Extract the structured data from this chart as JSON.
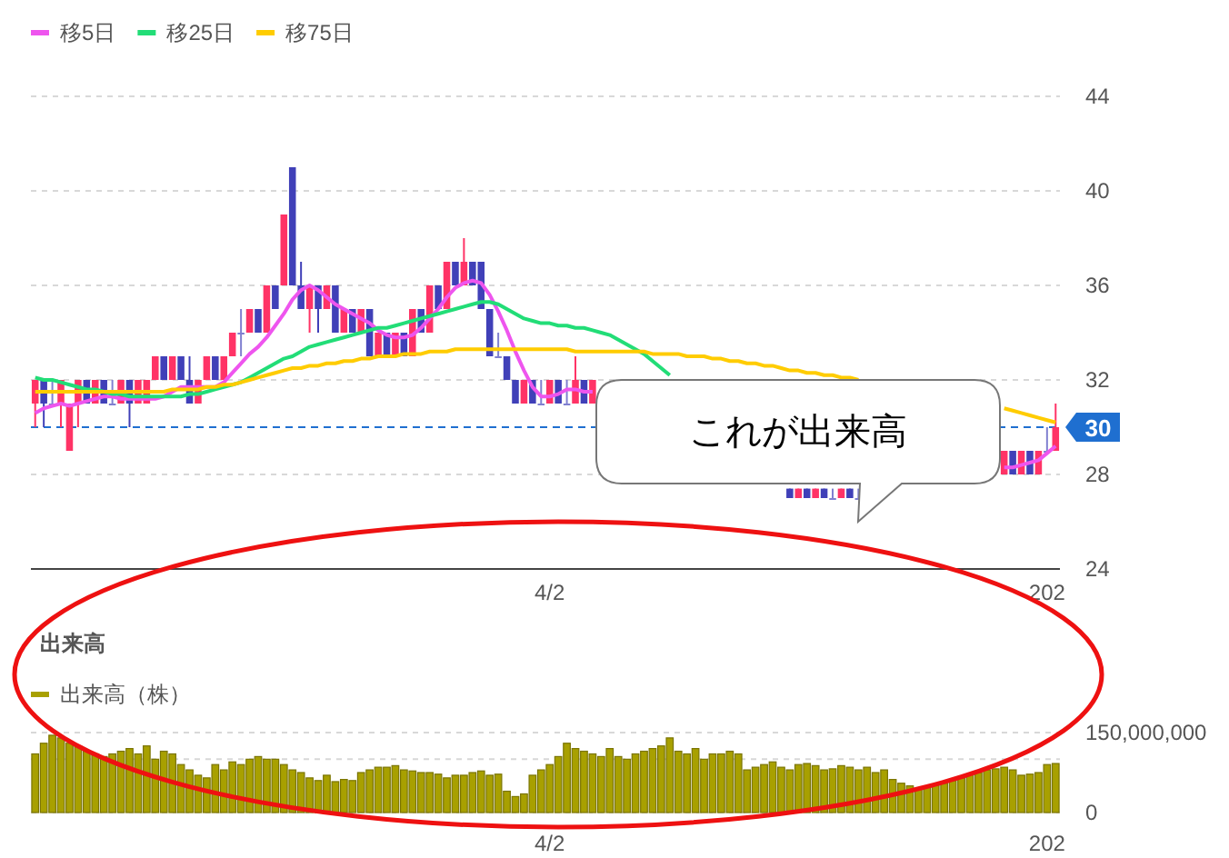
{
  "chart_data": [
    {
      "type": "candlestick",
      "categories": [
        null,
        null,
        null,
        null,
        null,
        null,
        null,
        null,
        null,
        null,
        null,
        null,
        null,
        null,
        null,
        null,
        null,
        null,
        null,
        null,
        null,
        null,
        null,
        null,
        null,
        null,
        null,
        null,
        null,
        null,
        null,
        null,
        null,
        null,
        null,
        null,
        null,
        null,
        null,
        null,
        null,
        null,
        null,
        null,
        null,
        null,
        null,
        null,
        null,
        null,
        null,
        null,
        null,
        null,
        null,
        null,
        null,
        null,
        null,
        null,
        "4/2",
        null,
        null,
        null,
        null,
        null,
        null,
        null,
        null,
        null,
        null,
        null,
        null,
        null,
        null,
        null,
        null,
        null,
        null,
        null,
        null,
        null,
        null,
        null,
        null,
        null,
        null,
        null,
        null,
        null,
        null,
        null,
        null,
        null,
        null,
        null,
        null,
        null,
        null,
        null,
        null,
        null,
        null,
        null,
        null,
        null,
        null,
        null,
        null,
        null,
        null,
        null,
        null,
        null,
        null,
        null,
        null,
        null,
        "202",
        null
      ],
      "ohlc": [
        [
          31,
          32,
          30,
          32
        ],
        [
          32,
          32,
          30,
          31
        ],
        [
          31,
          32,
          31,
          31
        ],
        [
          31,
          32,
          30,
          32
        ],
        [
          29,
          31,
          29,
          31
        ],
        [
          31,
          32,
          30,
          32
        ],
        [
          32,
          32,
          31,
          31
        ],
        [
          31,
          32,
          31,
          32
        ],
        [
          32,
          32,
          31,
          31
        ],
        [
          31,
          32,
          31,
          31
        ],
        [
          31,
          32,
          31,
          32
        ],
        [
          32,
          32,
          30,
          31
        ],
        [
          31,
          32,
          31,
          32
        ],
        [
          31,
          32,
          31,
          32
        ],
        [
          32,
          33,
          32,
          33
        ],
        [
          33,
          33,
          32,
          32
        ],
        [
          32,
          33,
          32,
          33
        ],
        [
          33,
          33,
          32,
          32
        ],
        [
          32,
          33,
          31,
          31
        ],
        [
          31,
          32,
          31,
          32
        ],
        [
          32,
          33,
          32,
          33
        ],
        [
          33,
          33,
          32,
          32
        ],
        [
          32,
          33,
          32,
          33
        ],
        [
          33,
          34,
          33,
          34
        ],
        [
          34,
          35,
          33,
          34
        ],
        [
          34,
          35,
          34,
          35
        ],
        [
          35,
          35,
          34,
          34
        ],
        [
          34,
          36,
          34,
          36
        ],
        [
          36,
          36,
          35,
          35
        ],
        [
          36,
          39,
          36,
          39
        ],
        [
          41,
          41,
          36,
          36
        ],
        [
          36,
          37,
          35,
          35
        ],
        [
          35,
          36,
          34,
          36
        ],
        [
          36,
          36,
          34,
          35
        ],
        [
          35,
          36,
          35,
          36
        ],
        [
          36,
          36,
          34,
          34
        ],
        [
          34,
          35,
          34,
          35
        ],
        [
          35,
          35,
          34,
          34
        ],
        [
          34,
          35,
          34,
          35
        ],
        [
          35,
          35,
          33,
          33
        ],
        [
          33,
          34,
          33,
          34
        ],
        [
          34,
          34,
          33,
          33
        ],
        [
          33,
          34,
          33,
          34
        ],
        [
          34,
          34,
          33,
          33
        ],
        [
          33,
          35,
          33,
          35
        ],
        [
          35,
          35,
          34,
          34
        ],
        [
          34,
          36,
          34,
          36
        ],
        [
          36,
          36,
          35,
          35
        ],
        [
          35,
          37,
          35,
          37
        ],
        [
          37,
          37,
          36,
          36
        ],
        [
          36,
          38,
          36,
          37
        ],
        [
          37,
          37,
          36,
          36
        ],
        [
          37,
          37,
          35,
          35
        ],
        [
          35,
          35,
          33,
          33
        ],
        [
          33,
          34,
          33,
          33
        ],
        [
          33,
          33,
          32,
          32
        ],
        [
          32,
          32,
          31,
          31
        ],
        [
          31,
          32,
          31,
          32
        ],
        [
          32,
          32,
          31,
          31
        ],
        [
          31,
          32,
          31,
          31
        ],
        [
          31,
          32,
          31,
          32
        ],
        [
          32,
          32,
          31,
          31
        ],
        [
          31,
          32,
          31,
          31
        ],
        [
          31,
          33,
          31,
          32
        ],
        [
          32,
          32,
          31,
          31
        ],
        [
          31,
          32,
          31,
          32
        ],
        null,
        null,
        null,
        null,
        null,
        null,
        null,
        null,
        null,
        null,
        null,
        null,
        null,
        null,
        null,
        null,
        null,
        null,
        null,
        null,
        null,
        null,
        [
          27.4,
          27.4,
          27,
          27
        ],
        [
          27,
          27.4,
          27,
          27.4
        ],
        [
          27.4,
          27.4,
          27,
          27
        ],
        [
          27,
          27.4,
          27,
          27.4
        ],
        [
          27.4,
          27.4,
          27,
          27
        ],
        [
          27,
          27.4,
          27,
          27
        ],
        [
          27,
          27.4,
          27,
          27.4
        ],
        [
          27.4,
          27.4,
          27,
          27
        ],
        [
          27,
          27.4,
          27,
          27
        ],
        null,
        null,
        null,
        null,
        null,
        null,
        null,
        null,
        null,
        null,
        null,
        null,
        null,
        null,
        null,
        null,
        [
          28,
          29,
          28,
          29
        ],
        [
          29,
          29,
          28,
          28
        ],
        [
          28,
          29,
          28,
          29
        ],
        [
          29,
          29,
          28,
          28
        ],
        [
          28,
          29,
          28,
          29
        ],
        [
          29,
          30,
          29,
          29
        ],
        [
          29,
          31,
          29,
          30
        ]
      ],
      "series": [
        {
          "name": "移5日",
          "type": "line",
          "color": "#ee55ee",
          "values": [
            30.6,
            30.8,
            30.9,
            31.0,
            30.9,
            31.0,
            31.1,
            31.2,
            31.3,
            31.3,
            31.2,
            31.2,
            31.2,
            31.2,
            31.2,
            31.3,
            31.5,
            31.7,
            31.7,
            31.7,
            31.7,
            31.7,
            31.9,
            32.3,
            32.7,
            33.1,
            33.4,
            33.8,
            34.3,
            34.8,
            35.4,
            35.8,
            36.0,
            35.8,
            35.5,
            35.2,
            35.0,
            34.8,
            34.6,
            34.4,
            34.1,
            33.9,
            33.8,
            33.8,
            33.9,
            34.2,
            34.6,
            35.0,
            35.5,
            35.9,
            36.1,
            36.2,
            36.1,
            35.6,
            34.9,
            34.1,
            33.2,
            32.4,
            31.7,
            31.3,
            31.3,
            31.4,
            31.6,
            31.6,
            31.5,
            31.5,
            null,
            null,
            null,
            null,
            null,
            null,
            null,
            null,
            null,
            null,
            null,
            null,
            null,
            null,
            null,
            null,
            null,
            null,
            null,
            null,
            null,
            null,
            null,
            null,
            null,
            null,
            null,
            null,
            null,
            null,
            null,
            null,
            null,
            null,
            null,
            null,
            null,
            null,
            null,
            null,
            null,
            null,
            null,
            null,
            null,
            null,
            null,
            28.3,
            28.3,
            28.4,
            28.5,
            28.6,
            28.9,
            29.2
          ]
        },
        {
          "name": "移25日",
          "type": "line",
          "color": "#22dd77",
          "values": [
            32.1,
            32.0,
            32.0,
            31.9,
            31.8,
            31.7,
            31.6,
            31.6,
            31.5,
            31.4,
            31.4,
            31.3,
            31.3,
            31.3,
            31.3,
            31.3,
            31.3,
            31.3,
            31.4,
            31.4,
            31.5,
            31.6,
            31.7,
            31.8,
            31.9,
            32.1,
            32.3,
            32.5,
            32.7,
            32.9,
            33.0,
            33.2,
            33.4,
            33.5,
            33.6,
            33.7,
            33.8,
            33.9,
            34.0,
            34.1,
            34.2,
            34.2,
            34.3,
            34.4,
            34.5,
            34.6,
            34.7,
            34.8,
            34.9,
            35.0,
            35.1,
            35.2,
            35.3,
            35.3,
            35.2,
            35.0,
            34.8,
            34.6,
            34.5,
            34.4,
            34.4,
            34.3,
            34.3,
            34.2,
            34.2,
            34.1,
            34.0,
            33.9,
            33.7,
            33.5,
            33.3,
            33.1,
            32.8,
            32.5,
            32.2,
            null,
            null,
            null,
            null,
            null,
            null,
            null,
            null,
            null,
            null,
            null,
            null,
            null,
            null,
            null,
            null,
            null,
            null,
            null,
            null,
            null,
            null,
            null,
            null,
            null,
            null,
            null,
            null,
            null,
            null,
            null,
            null,
            null,
            null,
            null,
            null,
            null,
            null,
            null,
            null,
            null,
            null,
            null,
            null,
            null
          ]
        },
        {
          "name": "移75日",
          "type": "line",
          "color": "#ffcc00",
          "values": [
            31.5,
            31.5,
            31.5,
            31.5,
            31.5,
            31.5,
            31.5,
            31.5,
            31.5,
            31.5,
            31.5,
            31.5,
            31.5,
            31.5,
            31.5,
            31.5,
            31.6,
            31.6,
            31.6,
            31.6,
            31.7,
            31.7,
            31.8,
            31.8,
            31.9,
            32.0,
            32.1,
            32.2,
            32.3,
            32.4,
            32.5,
            32.5,
            32.6,
            32.6,
            32.7,
            32.7,
            32.8,
            32.8,
            32.9,
            32.9,
            33.0,
            33.0,
            33.0,
            33.1,
            33.1,
            33.1,
            33.2,
            33.2,
            33.2,
            33.3,
            33.3,
            33.3,
            33.3,
            33.3,
            33.3,
            33.3,
            33.3,
            33.3,
            33.3,
            33.3,
            33.3,
            33.3,
            33.3,
            33.2,
            33.2,
            33.2,
            33.2,
            33.2,
            33.2,
            33.2,
            33.2,
            33.2,
            33.1,
            33.1,
            33.1,
            33.1,
            33.0,
            33.0,
            33.0,
            32.9,
            32.9,
            32.8,
            32.8,
            32.7,
            32.7,
            32.6,
            32.6,
            32.5,
            32.4,
            32.4,
            32.3,
            32.3,
            32.2,
            32.2,
            32.1,
            32.1,
            32.0,
            null,
            null,
            null,
            null,
            null,
            null,
            null,
            null,
            null,
            null,
            null,
            null,
            null,
            null,
            null,
            null,
            30.8,
            30.7,
            30.6,
            30.5,
            30.4,
            30.3,
            30.2
          ]
        }
      ],
      "ylim": [
        24,
        44
      ],
      "yticks": [
        24,
        28,
        32,
        36,
        40,
        44
      ],
      "grid": "y",
      "legend": "top left",
      "ref_lines": [
        {
          "axis": "y",
          "value": 30,
          "label": "30",
          "color": "#1f6fd0",
          "line_style": "dashed"
        }
      ],
      "annotations": [
        "これが出来高"
      ]
    },
    {
      "type": "bar",
      "title": "出来高",
      "categories": [
        null,
        null,
        null,
        null,
        null,
        null,
        null,
        null,
        null,
        null,
        null,
        null,
        null,
        null,
        null,
        null,
        null,
        null,
        null,
        null,
        null,
        null,
        null,
        null,
        null,
        null,
        null,
        null,
        null,
        null,
        null,
        null,
        null,
        null,
        null,
        null,
        null,
        null,
        null,
        null,
        null,
        null,
        null,
        null,
        null,
        null,
        null,
        null,
        null,
        null,
        null,
        null,
        null,
        null,
        null,
        null,
        null,
        null,
        null,
        null,
        "4/2",
        null,
        null,
        null,
        null,
        null,
        null,
        null,
        null,
        null,
        null,
        null,
        null,
        null,
        null,
        null,
        null,
        null,
        null,
        null,
        null,
        null,
        null,
        null,
        null,
        null,
        null,
        null,
        null,
        null,
        null,
        null,
        null,
        null,
        null,
        null,
        null,
        null,
        null,
        null,
        null,
        null,
        null,
        null,
        null,
        null,
        null,
        null,
        null,
        null,
        null,
        null,
        null,
        null,
        null,
        null,
        null,
        null,
        "202",
        null
      ],
      "series": [
        {
          "name": "出来高（株）",
          "color": "#a8a000",
          "values": [
            110000000,
            130000000,
            145000000,
            140000000,
            130000000,
            125000000,
            115000000,
            110000000,
            105000000,
            110000000,
            115000000,
            120000000,
            110000000,
            125000000,
            100000000,
            115000000,
            110000000,
            90000000,
            80000000,
            70000000,
            65000000,
            90000000,
            80000000,
            95000000,
            90000000,
            100000000,
            105000000,
            100000000,
            100000000,
            90000000,
            80000000,
            75000000,
            65000000,
            60000000,
            70000000,
            58000000,
            62000000,
            60000000,
            75000000,
            80000000,
            85000000,
            85000000,
            88000000,
            80000000,
            78000000,
            75000000,
            75000000,
            72000000,
            65000000,
            70000000,
            70000000,
            75000000,
            78000000,
            70000000,
            72000000,
            40000000,
            30000000,
            35000000,
            70000000,
            80000000,
            90000000,
            105000000,
            130000000,
            120000000,
            115000000,
            110000000,
            105000000,
            120000000,
            105000000,
            100000000,
            110000000,
            115000000,
            120000000,
            125000000,
            140000000,
            115000000,
            110000000,
            120000000,
            100000000,
            110000000,
            110000000,
            115000000,
            110000000,
            80000000,
            85000000,
            90000000,
            95000000,
            85000000,
            80000000,
            90000000,
            92000000,
            88000000,
            80000000,
            82000000,
            88000000,
            85000000,
            80000000,
            85000000,
            75000000,
            80000000,
            62000000,
            55000000,
            50000000,
            45000000,
            50000000,
            52000000,
            55000000,
            60000000,
            65000000,
            72000000,
            75000000,
            80000000,
            82000000,
            85000000,
            80000000,
            70000000,
            72000000,
            75000000,
            90000000,
            92000000
          ]
        }
      ],
      "ylim": [
        0,
        150000000
      ],
      "yticks": [
        0,
        {
          "value": 100000000,
          "label": null
        },
        {
          "value": 150000000,
          "label": "150,000,000"
        }
      ],
      "grid": "y",
      "legend": "top left"
    }
  ]
}
